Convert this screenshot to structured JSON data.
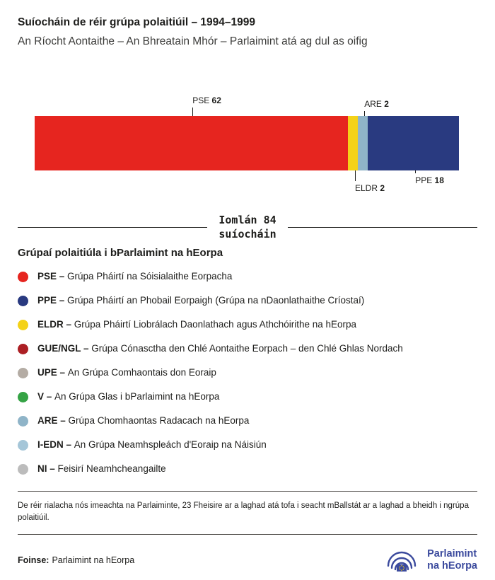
{
  "chart_data": {
    "type": "bar",
    "variant": "horizontal_stacked",
    "title": "Suíocháin de réir grúpa polaitiúil – 1994–1999",
    "subtitle": "An Ríocht Aontaithe – An Bhreatain Mhór – Parlaimint atá ag dul as oifig",
    "total": 84,
    "total_label": "Iomlán 84\nsuíocháin",
    "categories": [
      "PSE",
      "ELDR",
      "ARE",
      "PPE"
    ],
    "values": [
      62,
      2,
      2,
      18
    ],
    "segments": [
      {
        "group": "PSE",
        "seats": 62,
        "color": "#e6251f"
      },
      {
        "group": "ELDR",
        "seats": 2,
        "color": "#f4d218"
      },
      {
        "group": "ARE",
        "seats": 2,
        "color": "#8fb4c8"
      },
      {
        "group": "PPE",
        "seats": 18,
        "color": "#293a80"
      }
    ],
    "callouts": [
      {
        "group": "PSE",
        "value": "62",
        "side": "top",
        "left_pct": 37.2,
        "line_len": 12
      },
      {
        "group": "ARE",
        "value": "2",
        "side": "top",
        "left_pct": 77.7,
        "line_len": 7
      },
      {
        "group": "ELDR",
        "value": "2",
        "side": "bottom",
        "left_pct": 75.5,
        "line_len": 15
      },
      {
        "group": "PPE",
        "value": "18",
        "side": "bottom",
        "left_pct": 89.7,
        "line_len": 4
      }
    ],
    "axes": "none",
    "legend_position": "below"
  },
  "legend": {
    "title": "Grúpaí polaitiúla i bParlaimint na hEorpa",
    "items": [
      {
        "abbr_label": "PSE –",
        "name": "Grúpa Pháirtí na Sóisialaithe Eorpacha",
        "color": "#e6251f"
      },
      {
        "abbr_label": "PPE –",
        "name": "Grúpa Pháirtí an Phobail Eorpaigh (Grúpa na nDaonlathaithe Críostaí)",
        "color": "#293a80"
      },
      {
        "abbr_label": "ELDR –",
        "name": "Grúpa Pháirtí Liobrálach Daonlathach agus Athchóirithe na hEorpa",
        "color": "#f4d218"
      },
      {
        "abbr_label": "GUE/NGL –",
        "name": "Grúpa Cónasctha den Chlé Aontaithe Eorpach – den Chlé Ghlas Nordach",
        "color": "#ac1f24"
      },
      {
        "abbr_label": "UPE –",
        "name": "An Grúpa Comhaontais don Eoraip",
        "color": "#b4aca4"
      },
      {
        "abbr_label": "V –",
        "name": "An Grúpa Glas i bParlaimint na hEorpa",
        "color": "#35a345"
      },
      {
        "abbr_label": "ARE –",
        "name": "Grúpa Chomhaontas Radacach na hEorpa",
        "color": "#8fb4c8"
      },
      {
        "abbr_label": "I-EDN –",
        "name": "An Grúpa Neamhspleách d'Eoraip na Náisiún",
        "color": "#a5c6d8"
      },
      {
        "abbr_label": "NI –",
        "name": "Feisirí Neamhcheangailte",
        "color": "#bcbcbc"
      }
    ]
  },
  "footnote": "De réir rialacha nós imeachta na Parlaiminte, 23 Fheisire ar a laghad atá tofa i seacht mBallstát ar a laghad a bheidh i ngrúpa polaitiúil.",
  "source": {
    "label": "Foinse:",
    "text": "Parlaimint na hEorpa"
  },
  "logo": {
    "line1": "Parlaimint",
    "line2": "na hEorpa"
  }
}
